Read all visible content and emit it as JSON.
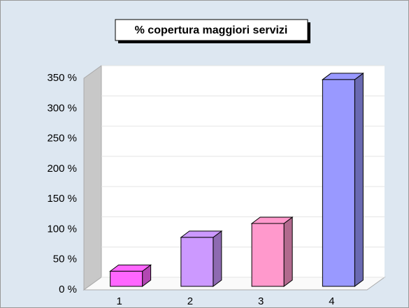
{
  "chart_data": {
    "type": "bar3d",
    "title": "% copertura maggiori servizi",
    "categories": [
      "1",
      "2",
      "3",
      "4"
    ],
    "values": [
      25,
      81,
      104,
      342
    ],
    "colors": [
      "#ff66ff",
      "#cc99ff",
      "#ff99cc",
      "#9999ff"
    ],
    "ylim": [
      0,
      350
    ],
    "yticks": [
      {
        "value": 0,
        "label": "0 %"
      },
      {
        "value": 50,
        "label": "50 %"
      },
      {
        "value": 100,
        "label": "100 %"
      },
      {
        "value": 150,
        "label": "150 %"
      },
      {
        "value": 200,
        "label": "200 %"
      },
      {
        "value": 250,
        "label": "250 %"
      },
      {
        "value": 300,
        "label": "300 %"
      },
      {
        "value": 350,
        "label": "350 %"
      }
    ],
    "grid": true
  }
}
